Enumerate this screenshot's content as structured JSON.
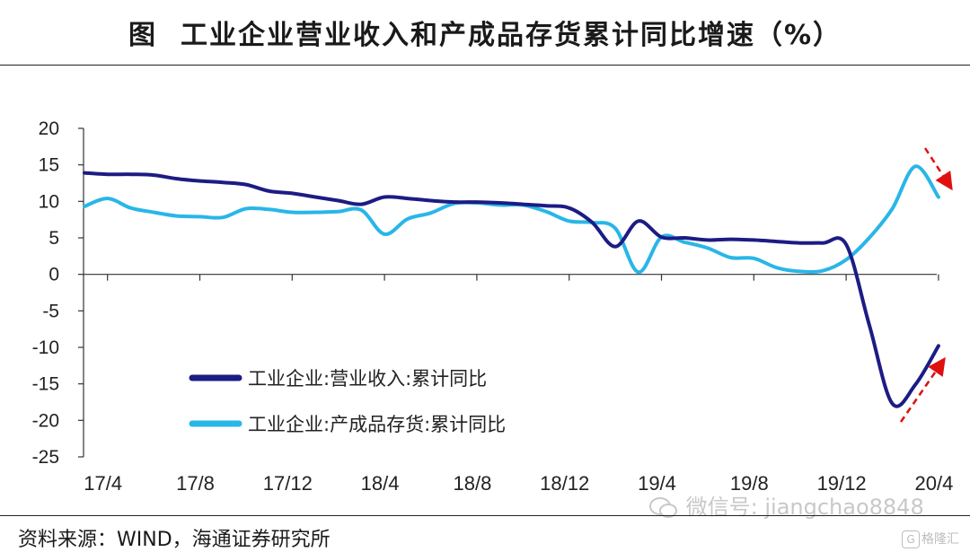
{
  "header": {
    "figure_label": "图",
    "title": "工业企业营业收入和产成品存货累计同比增速（%）"
  },
  "chart_data": {
    "type": "line",
    "title": "工业企业营业收入和产成品存货累计同比增速（%）",
    "xlabel": "",
    "ylabel": "",
    "ylim": [
      -25,
      20
    ],
    "yticks": [
      20,
      15,
      10,
      5,
      0,
      -5,
      -10,
      -15,
      -20,
      -25
    ],
    "x_tick_labels": [
      "17/4",
      "17/8",
      "17/12",
      "18/4",
      "18/8",
      "18/12",
      "19/4",
      "19/8",
      "19/12",
      "20/4"
    ],
    "x": [
      "17/3",
      "17/4",
      "17/5",
      "17/6",
      "17/7",
      "17/8",
      "17/9",
      "17/10",
      "17/11",
      "17/12",
      "18/1",
      "18/2",
      "18/3",
      "18/4",
      "18/5",
      "18/6",
      "18/7",
      "18/8",
      "18/9",
      "18/10",
      "18/11",
      "18/12",
      "19/1",
      "19/2",
      "19/3",
      "19/4",
      "19/5",
      "19/6",
      "19/7",
      "19/8",
      "19/9",
      "19/10",
      "19/11",
      "19/12",
      "20/1",
      "20/2",
      "20/3",
      "20/4"
    ],
    "series": [
      {
        "name": "工业企业:营业收入:累计同比",
        "color": "#1c1c84",
        "values": [
          13.9,
          13.7,
          13.7,
          13.6,
          13.1,
          12.8,
          12.6,
          12.3,
          11.4,
          11.1,
          10.6,
          10.1,
          9.6,
          10.6,
          10.4,
          10.1,
          9.9,
          9.9,
          9.8,
          9.6,
          9.4,
          9.1,
          7.1,
          3.8,
          7.3,
          5.1,
          5.0,
          4.7,
          4.8,
          4.7,
          4.5,
          4.3,
          4.3,
          4.1,
          -6.9,
          -17.7,
          -15.1,
          -9.8
        ]
      },
      {
        "name": "工业企业:产成品存货:累计同比",
        "color": "#29b6e8",
        "values": [
          9.3,
          10.4,
          9.1,
          8.5,
          8.0,
          7.9,
          7.8,
          9.0,
          8.9,
          8.5,
          8.5,
          8.6,
          8.8,
          5.5,
          7.6,
          8.4,
          9.7,
          9.8,
          9.5,
          9.5,
          8.6,
          7.3,
          7.1,
          6.3,
          0.3,
          5.1,
          4.4,
          3.6,
          2.3,
          2.2,
          0.9,
          0.4,
          0.5,
          2.0,
          5.0,
          9.0,
          14.8,
          10.6
        ]
      }
    ],
    "legend_position": "lower-left"
  },
  "footer": {
    "source": "资料来源：WIND，海通证券研究所"
  },
  "watermark": {
    "text": "微信号: jiangchao8848",
    "logo_text": "格隆汇"
  }
}
